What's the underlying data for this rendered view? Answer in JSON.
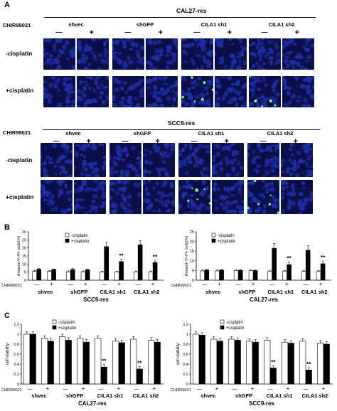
{
  "panel_a": {
    "label": "A",
    "top": {
      "title": "CAL27-res",
      "agent_label": "CHIR99021",
      "groups": [
        "shvec",
        "shGFP",
        "CILA1 sh1",
        "CILA1 sh2"
      ],
      "signs": [
        "—",
        "+"
      ],
      "rows": [
        "-cisplatin",
        "+cisplatin"
      ],
      "image_color": "#1d2fa8",
      "green": "#7cff7c"
    },
    "bottom": {
      "title": "SCC9-res",
      "agent_label": "CHIR99021",
      "groups": [
        "shvec",
        "shGFP",
        "CILA1 sh1",
        "CILA1 sh2"
      ],
      "signs": [
        "—",
        "+"
      ],
      "rows": [
        "-cisplatin",
        "+cisplatin"
      ]
    }
  },
  "panel_b": {
    "label": "B",
    "agent_label": "CHIR99021",
    "minus": "—",
    "plus": "+"
  },
  "panel_c": {
    "label": "C",
    "agent_label": "CHIR99021",
    "minus": "—",
    "plus": "+"
  },
  "chart_data": [
    {
      "type": "bar",
      "panel": "B-left",
      "title": "SCC9-res",
      "ylabel": "Annexin V+PI- cells(%)",
      "ylim": [
        0,
        30
      ],
      "yticks": [
        0,
        5,
        10,
        15,
        20,
        25,
        30
      ],
      "categories": [
        "shvec",
        "shGFP",
        "CILA1 sh1",
        "CILA1 sh2"
      ],
      "series": [
        {
          "name": "-cisplatin",
          "values": [
            5.5,
            5.2,
            5.0,
            5.2
          ],
          "errors": [
            0.5,
            0.5,
            0.5,
            0.5
          ],
          "color": "#ffffff"
        },
        {
          "name": "+cisplatin",
          "values": [
            6.8,
            6.6,
            20.8,
            22.0
          ],
          "errors": [
            0.6,
            0.6,
            2.6,
            2.4
          ],
          "color": "#000000"
        }
      ],
      "treatment": [
        "—",
        "+"
      ],
      "annotations": [
        "",
        "",
        "**",
        "**"
      ],
      "annotated_values": [
        6.6,
        6.5,
        11.5,
        11.0
      ],
      "note": "+cisplatin bars shown for CHIR99021 — and +"
    },
    {
      "type": "bar",
      "panel": "B-right",
      "title": "CAL27-res",
      "ylabel": "Annexin V+PI- cells(%)",
      "ylim": [
        0,
        25
      ],
      "yticks": [
        0,
        5,
        10,
        15,
        20,
        25
      ],
      "categories": [
        "shvec",
        "shGFP",
        "CILA1 sh1",
        "CILA1 sh2"
      ],
      "series": [
        {
          "name": "-cisplatin",
          "values": [
            4.8,
            4.9,
            4.7,
            4.6
          ],
          "errors": [
            0.4,
            0.4,
            0.4,
            0.4
          ],
          "color": "#ffffff"
        },
        {
          "name": "+cisplatin",
          "values": [
            5.2,
            5.1,
            16.5,
            15.5
          ],
          "errors": [
            0.4,
            0.4,
            2.5,
            2.3
          ],
          "color": "#000000"
        }
      ],
      "treatment": [
        "—",
        "+"
      ],
      "annotations": [
        "",
        "",
        "**",
        "**"
      ],
      "annotated_values": [
        5.2,
        5.0,
        8.0,
        8.5
      ]
    },
    {
      "type": "bar",
      "panel": "C-left",
      "title": "CAL27-res",
      "ylabel": "cell viability",
      "ylim": [
        0,
        1.2
      ],
      "yticks": [
        0,
        0.2,
        0.4,
        0.6,
        0.8,
        1.0,
        1.2
      ],
      "categories": [
        "shvec",
        "shGFP",
        "CILA1 sh1",
        "CILA1 sh2"
      ],
      "legend": [
        "-cisplatin",
        "+cisplatin"
      ],
      "bars": [
        {
          "group": "shvec",
          "chir": "—",
          "minus_cis": 1.0,
          "plus_cis": 1.0
        },
        {
          "group": "shvec",
          "chir": "+",
          "minus_cis": 0.92,
          "plus_cis": 0.86
        },
        {
          "group": "shGFP",
          "chir": "—",
          "minus_cis": 0.95,
          "plus_cis": 0.88
        },
        {
          "group": "shGFP",
          "chir": "+",
          "minus_cis": 0.92,
          "plus_cis": 0.84
        },
        {
          "group": "CILA1 sh1",
          "chir": "—",
          "minus_cis": 0.92,
          "plus_cis": 0.34
        },
        {
          "group": "CILA1 sh1",
          "chir": "+",
          "minus_cis": 0.86,
          "plus_cis": 0.83
        },
        {
          "group": "CILA1 sh2",
          "chir": "—",
          "minus_cis": 0.9,
          "plus_cis": 0.3
        },
        {
          "group": "CILA1 sh2",
          "chir": "+",
          "minus_cis": 0.88,
          "plus_cis": 0.84
        }
      ],
      "annotations": [
        "**",
        "**"
      ]
    },
    {
      "type": "bar",
      "panel": "C-right",
      "title": "SCC9-res",
      "ylabel": "cell viability",
      "ylim": [
        0,
        1.2
      ],
      "yticks": [
        0,
        0.2,
        0.4,
        0.6,
        0.8,
        1.0,
        1.2
      ],
      "categories": [
        "shvec",
        "shGFP",
        "CILA1 sh1",
        "CILA1 sh2"
      ],
      "legend": [
        "-cisplatin",
        "+cisplatin"
      ],
      "bars": [
        {
          "group": "shvec",
          "chir": "—",
          "minus_cis": 1.0,
          "plus_cis": 0.98
        },
        {
          "group": "shvec",
          "chir": "+",
          "minus_cis": 0.9,
          "plus_cis": 0.86
        },
        {
          "group": "shGFP",
          "chir": "—",
          "minus_cis": 0.9,
          "plus_cis": 0.88
        },
        {
          "group": "shGFP",
          "chir": "+",
          "minus_cis": 0.86,
          "plus_cis": 0.84
        },
        {
          "group": "CILA1 sh1",
          "chir": "—",
          "minus_cis": 0.88,
          "plus_cis": 0.32
        },
        {
          "group": "CILA1 sh1",
          "chir": "+",
          "minus_cis": 0.84,
          "plus_cis": 0.82
        },
        {
          "group": "CILA1 sh2",
          "chir": "—",
          "minus_cis": 0.86,
          "plus_cis": 0.28
        },
        {
          "group": "CILA1 sh2",
          "chir": "+",
          "minus_cis": 0.82,
          "plus_cis": 0.8
        }
      ],
      "annotations": [
        "**",
        "**"
      ]
    }
  ]
}
